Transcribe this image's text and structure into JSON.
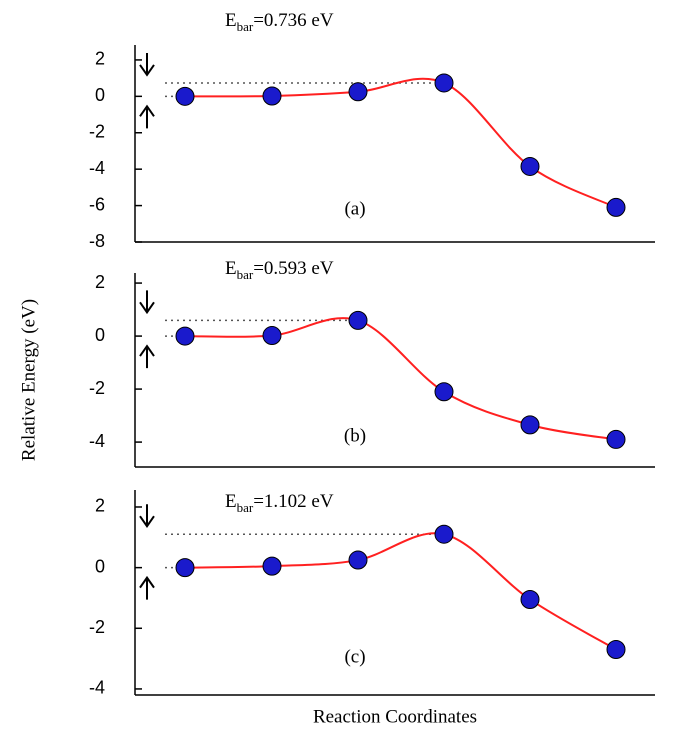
{
  "ylabel": "Relative Energy (eV)",
  "xlabel": "Reaction Coordinates",
  "chart_data": [
    {
      "type": "line",
      "annotation": [
        "E",
        "bar",
        "=0.736 eV"
      ],
      "panel_label": "(a)",
      "values": [
        0,
        0.02,
        0.25,
        0.736,
        -3.85,
        -6.1
      ],
      "line_color": "#ff2020",
      "marker_color": "#1a1acc",
      "ylim": [
        -8,
        2.82
      ],
      "yticks": [
        2,
        0,
        -2,
        -4,
        -6,
        -8
      ]
    },
    {
      "type": "line",
      "annotation": [
        "E",
        "bar",
        "=0.593 eV"
      ],
      "panel_label": "(b)",
      "values": [
        0,
        0.02,
        0.593,
        -2.1,
        -3.35,
        -3.9
      ],
      "line_color": "#ff2020",
      "marker_color": "#1a1acc",
      "ylim": [
        -4.94,
        2.38
      ],
      "yticks": [
        2,
        0,
        -2,
        -4
      ]
    },
    {
      "type": "line",
      "annotation": [
        "E",
        "bar",
        "=1.102 eV"
      ],
      "panel_label": "(c)",
      "values": [
        0,
        0.05,
        0.25,
        1.102,
        -1.05,
        -2.7
      ],
      "line_color": "#ff2020",
      "marker_color": "#1a1acc",
      "ylim": [
        -4.2,
        2.56
      ],
      "yticks": [
        2,
        0,
        -2,
        -4
      ]
    }
  ]
}
